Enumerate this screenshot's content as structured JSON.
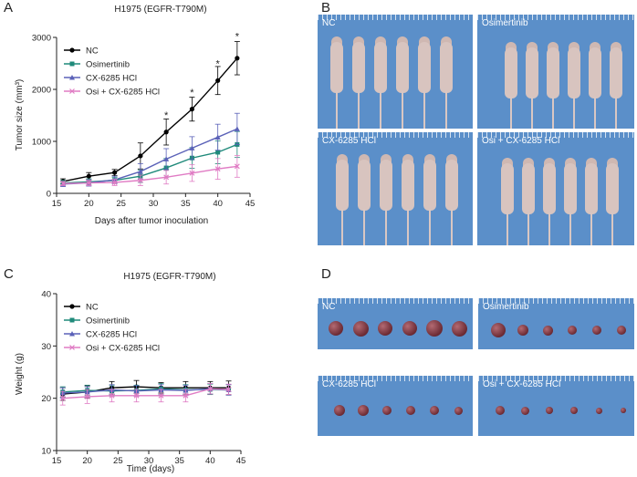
{
  "panels": {
    "a": "A",
    "b": "B",
    "c": "C",
    "d": "D"
  },
  "photos_b": {
    "nc": "NC",
    "osimertinib": "Osimertinib",
    "cx": "CX-6285 HCl",
    "combo": "Osi + CX-6285 HCl"
  },
  "photos_d": {
    "nc": "NC",
    "osimertinib": "Osimertinib",
    "cx": "CX-6285 HCl",
    "combo": "Osi + CX-6285 HCl"
  },
  "colors": {
    "photo_bg": "#5b8fc9",
    "nc": "#000000",
    "osimertinib": "#1f8a7a",
    "cx": "#5b62b8",
    "combo": "#e07cc4"
  },
  "chart_data": [
    {
      "type": "line",
      "title": "H1975 (EGFR-T790M)",
      "xlabel": "Days after tumor inoculation",
      "ylabel": "Tumor size (mm³)",
      "xlim": [
        15,
        45
      ],
      "ylim": [
        0,
        3000
      ],
      "xticks": [
        15,
        20,
        25,
        30,
        35,
        40,
        45
      ],
      "yticks": [
        0,
        1000,
        2000,
        3000
      ],
      "legend_position": "top-left",
      "annotations": [
        {
          "text": "*",
          "x": 32,
          "y": 1440
        },
        {
          "text": "*",
          "x": 36,
          "y": 1880
        },
        {
          "text": "*",
          "x": 40,
          "y": 2430
        },
        {
          "text": "*",
          "x": 43,
          "y": 2960
        }
      ],
      "series": [
        {
          "name": "NC",
          "color": "#000000",
          "marker": "circle",
          "x": [
            16,
            20,
            24,
            28,
            32,
            36,
            40,
            43
          ],
          "y": [
            230,
            330,
            400,
            720,
            1180,
            1620,
            2170,
            2600
          ],
          "err": [
            50,
            70,
            60,
            250,
            250,
            230,
            270,
            320
          ]
        },
        {
          "name": "Osimertinib",
          "color": "#1f8a7a",
          "marker": "square",
          "x": [
            16,
            20,
            24,
            28,
            32,
            36,
            40,
            43
          ],
          "y": [
            200,
            220,
            250,
            330,
            490,
            680,
            790,
            940
          ],
          "err": [
            50,
            60,
            60,
            120,
            180,
            200,
            220,
            250
          ]
        },
        {
          "name": "CX-6285 HCl",
          "color": "#5b62b8",
          "marker": "triangle",
          "x": [
            16,
            20,
            24,
            28,
            32,
            36,
            40,
            43
          ],
          "y": [
            180,
            200,
            260,
            420,
            660,
            870,
            1080,
            1240
          ],
          "err": [
            50,
            60,
            70,
            150,
            200,
            220,
            250,
            300
          ]
        },
        {
          "name": "Osi + CX-6285 HCl",
          "color": "#e07cc4",
          "marker": "x",
          "x": [
            16,
            20,
            24,
            28,
            32,
            36,
            40,
            43
          ],
          "y": [
            190,
            200,
            210,
            250,
            310,
            390,
            470,
            520
          ],
          "err": [
            40,
            50,
            60,
            100,
            130,
            160,
            200,
            210
          ]
        }
      ]
    },
    {
      "type": "line",
      "title": "H1975 (EGFR-T790M)",
      "xlabel": "Time (days)",
      "ylabel": "Weight (g)",
      "xlim": [
        15,
        45
      ],
      "ylim": [
        10,
        40
      ],
      "xticks": [
        15,
        20,
        25,
        30,
        35,
        40,
        45
      ],
      "yticks": [
        10,
        20,
        30,
        40
      ],
      "legend_position": "top-left",
      "series": [
        {
          "name": "NC",
          "color": "#000000",
          "marker": "circle",
          "x": [
            16,
            20,
            24,
            28,
            32,
            36,
            40,
            43
          ],
          "y": [
            20.8,
            21.2,
            22.0,
            22.2,
            22.0,
            22.0,
            22.0,
            22.0
          ],
          "err": [
            1.2,
            1.2,
            1.2,
            1.2,
            1.0,
            1.2,
            1.2,
            1.3
          ]
        },
        {
          "name": "Osimertinib",
          "color": "#1f8a7a",
          "marker": "square",
          "x": [
            16,
            20,
            24,
            28,
            32,
            36,
            40,
            43
          ],
          "y": [
            21.2,
            21.5,
            21.4,
            21.5,
            21.8,
            21.6,
            21.7,
            21.6
          ],
          "err": [
            1.0,
            1.0,
            1.0,
            1.0,
            1.0,
            1.0,
            1.0,
            1.0
          ]
        },
        {
          "name": "CX-6285 HCl",
          "color": "#5b62b8",
          "marker": "triangle",
          "x": [
            16,
            20,
            24,
            28,
            32,
            36,
            40,
            43
          ],
          "y": [
            21.0,
            21.2,
            21.6,
            21.4,
            21.6,
            21.5,
            21.8,
            21.6
          ],
          "err": [
            1.0,
            1.0,
            1.0,
            1.0,
            1.0,
            1.0,
            1.0,
            1.0
          ]
        },
        {
          "name": "Osi + CX-6285 HCl",
          "color": "#e07cc4",
          "marker": "x",
          "x": [
            16,
            20,
            24,
            28,
            32,
            36,
            40,
            43
          ],
          "y": [
            20.0,
            20.3,
            20.5,
            20.5,
            20.5,
            20.5,
            21.8,
            21.7
          ],
          "err": [
            1.3,
            1.3,
            1.2,
            1.2,
            1.2,
            1.2,
            1.0,
            1.0
          ]
        }
      ]
    }
  ]
}
